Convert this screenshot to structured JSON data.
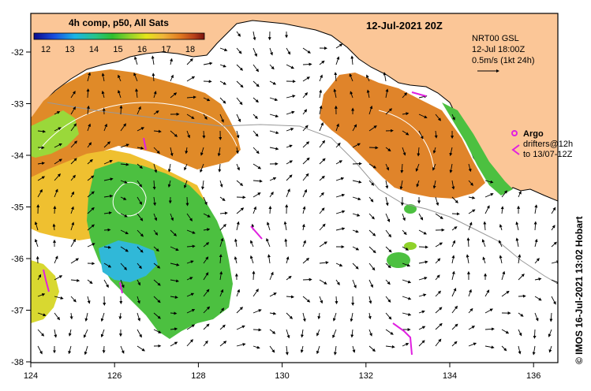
{
  "header": {
    "composite_label": "4h comp, p50, All Sats",
    "datetime": "12-Jul-2021 20Z"
  },
  "colorbar": {
    "ticks": [
      "12",
      "13",
      "14",
      "15",
      "16",
      "17",
      "18"
    ],
    "colors": [
      "#0a0a8c",
      "#1a4fe0",
      "#19b4e6",
      "#27c48a",
      "#2fbf2f",
      "#8fd22a",
      "#e6e619",
      "#f0b43a",
      "#e07820",
      "#b8401a",
      "#7a1410"
    ]
  },
  "current_legend": {
    "line1": "NRT00 GSL",
    "line2": "12-Jul 18:00Z",
    "line3": "0.5m/s (1kt 24h)"
  },
  "argo_legend": {
    "title": "Argo",
    "line1": "drifters@12h",
    "line2": "to 13/07-12Z"
  },
  "credit": "© IMOS 16-Jul-2021 13:02 Hobart",
  "axes": {
    "x_ticks": [
      "124",
      "126",
      "128",
      "130",
      "132",
      "134",
      "136"
    ],
    "y_ticks": [
      "-32",
      "-33",
      "-34",
      "-35",
      "-36",
      "-37",
      "-38"
    ]
  },
  "colors": {
    "land": "#fbc697",
    "drifter": "#e020e0",
    "sea": "#ffffff"
  }
}
